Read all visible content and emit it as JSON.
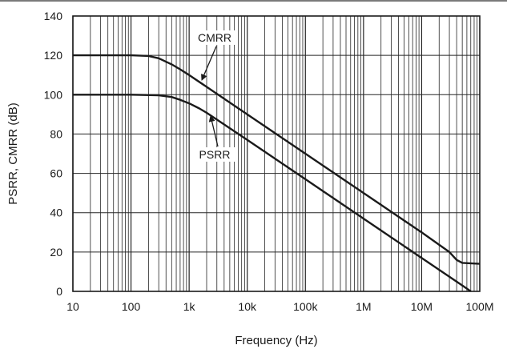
{
  "chart_data": {
    "type": "line",
    "xscale": "log",
    "xlim": [
      10,
      100000000
    ],
    "ylim": [
      0,
      140
    ],
    "grid": true,
    "xlabel": "Frequency (Hz)",
    "ylabel": "PSRR, CMRR (dB)",
    "x_tick_values": [
      10,
      100,
      1000,
      10000,
      100000,
      1000000,
      10000000,
      100000000
    ],
    "x_tick_labels": [
      "10",
      "100",
      "1k",
      "10k",
      "100k",
      "1M",
      "10M",
      "100M"
    ],
    "y_tick_values": [
      0,
      20,
      40,
      60,
      80,
      100,
      120,
      140
    ],
    "y_tick_labels": [
      "0",
      "20",
      "40",
      "60",
      "80",
      "100",
      "120",
      "140"
    ],
    "series": [
      {
        "name": "CMRR",
        "points": [
          [
            10,
            120
          ],
          [
            100,
            120
          ],
          [
            200,
            119.7
          ],
          [
            300,
            118.5
          ],
          [
            500,
            115.4
          ],
          [
            700,
            112.9
          ],
          [
            1000,
            110
          ],
          [
            10000,
            90
          ],
          [
            100000,
            70
          ],
          [
            1000000,
            50
          ],
          [
            10000000,
            30
          ],
          [
            30000000,
            20
          ],
          [
            40000000,
            16
          ],
          [
            50000000,
            14.5
          ],
          [
            100000000,
            14
          ]
        ]
      },
      {
        "name": "PSRR",
        "points": [
          [
            10,
            100
          ],
          [
            100,
            100
          ],
          [
            300,
            99.7
          ],
          [
            500,
            98.8
          ],
          [
            700,
            97.4
          ],
          [
            1000,
            95.6
          ],
          [
            1500,
            93
          ],
          [
            2000,
            90.8
          ],
          [
            10000,
            77
          ],
          [
            100000,
            57
          ],
          [
            1000000,
            37
          ],
          [
            10000000,
            17
          ],
          [
            50000000,
            3
          ],
          [
            70000000,
            0
          ]
        ]
      }
    ],
    "annotations": [
      {
        "text": "CMRR",
        "x": 2000,
        "y": 106
      },
      {
        "text": "PSRR",
        "x": 2500,
        "y": 88
      }
    ]
  }
}
